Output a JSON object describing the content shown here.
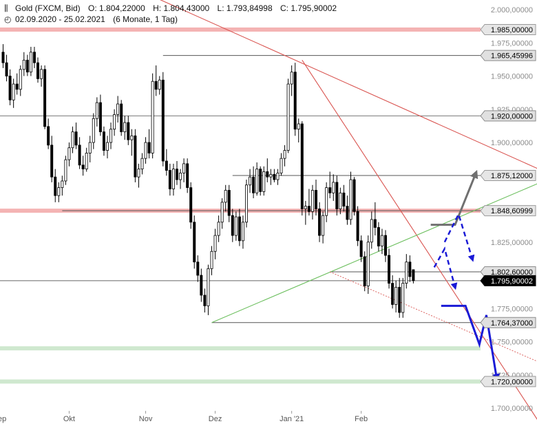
{
  "header": {
    "instrument": "Gold (FXCM, Bid)",
    "ohlc": [
      {
        "label": "O:",
        "value": "1.804,22000"
      },
      {
        "label": "H:",
        "value": "1.804,43000"
      },
      {
        "label": "L:",
        "value": "1.793,84998"
      },
      {
        "label": "C:",
        "value": "1.795,90002"
      }
    ],
    "date_range": "02.09.2020 - 25.02.2021",
    "period": "(6 Monate, 1 Tag)",
    "icons": {
      "chart": "candlestick-icon",
      "clock": "clock-icon"
    }
  },
  "chart_data": {
    "type": "candlestick",
    "ylim": [
      1690,
      2005
    ],
    "y_ticks": [
      {
        "value": 2000,
        "label": "2.000,00000"
      },
      {
        "value": 1975,
        "label": "1.975,00000"
      },
      {
        "value": 1950,
        "label": "1.950,00000"
      },
      {
        "value": 1925,
        "label": "1.925,00000"
      },
      {
        "value": 1900,
        "label": "1.900,00000"
      },
      {
        "value": 1825,
        "label": "1.825,00000"
      },
      {
        "value": 1775,
        "label": "1.775,00000"
      },
      {
        "value": 1750,
        "label": "1.750,00000"
      },
      {
        "value": 1725,
        "label": "1.725,00000"
      },
      {
        "value": 1700,
        "label": "1.700,00000"
      }
    ],
    "x_ticks": [
      {
        "index": -1,
        "label": "Sep"
      },
      {
        "index": 19,
        "label": "Okt"
      },
      {
        "index": 41,
        "label": "Nov"
      },
      {
        "index": 61,
        "label": "Dez"
      },
      {
        "index": 83,
        "label": "Jan '21"
      },
      {
        "index": 103,
        "label": "Feb"
      }
    ],
    "price_labels": [
      {
        "value": 1985.0,
        "label": "1.985,00000",
        "style": "zone-red"
      },
      {
        "value": 1965.45996,
        "label": "1.965,45996",
        "style": "gray"
      },
      {
        "value": 1920.0,
        "label": "1.920,00000",
        "style": "gray"
      },
      {
        "value": 1875.12,
        "label": "1.875,12000",
        "style": "zone-red"
      },
      {
        "value": 1848.60999,
        "label": "1.848,60999",
        "style": "zone-red"
      },
      {
        "value": 1802.6,
        "label": "1.802,60000",
        "style": "gray"
      },
      {
        "value": 1795.90002,
        "label": "1.795,90002",
        "style": "current"
      },
      {
        "value": 1764.37,
        "label": "1.764,37000",
        "style": "gray"
      },
      {
        "value": 1720.0,
        "label": "1.720,00000",
        "style": "zone-green"
      }
    ],
    "zones": [
      {
        "value": 1985.0,
        "color": "#f4b3b3"
      },
      {
        "value": 1848.60999,
        "color": "#f4b3b3"
      },
      {
        "value": 1745.0,
        "color": "#cfe8cf"
      },
      {
        "value": 1720.0,
        "color": "#cfe8cf"
      }
    ],
    "levels": [
      {
        "value": 1965.45996,
        "from": 46,
        "color": "#555555"
      },
      {
        "value": 1920.0,
        "from": -1,
        "color": "#777777"
      },
      {
        "value": 1875.12,
        "from": 66,
        "color": "#555555"
      },
      {
        "value": 1848.60999,
        "from": 17,
        "color": "#555555"
      },
      {
        "value": 1802.6,
        "from": 94,
        "color": "#555555"
      },
      {
        "value": 1795.90002,
        "from": -1,
        "color": "#666666"
      },
      {
        "value": 1764.37,
        "from": 60,
        "color": "#555555"
      }
    ],
    "trendlines": [
      {
        "from": [
          43,
          2010
        ],
        "to": [
          160,
          1873
        ],
        "color": "#d9534f"
      },
      {
        "from": [
          86,
          1962
        ],
        "to": [
          154,
          1690
        ],
        "color": "#d9534f"
      },
      {
        "from": [
          60,
          1764.4
        ],
        "to": [
          160,
          1876
        ],
        "color": "#6cbf5e"
      },
      {
        "from": [
          94,
          1802.6
        ],
        "to": [
          160,
          1728
        ],
        "color": "#d9534f",
        "dash": true
      }
    ],
    "projections": [
      {
        "points": [
          [
            123,
            1838
          ],
          [
            130,
            1838
          ],
          [
            136,
            1877
          ]
        ],
        "color": "#707070",
        "width": 3,
        "dash": false,
        "arrow": true
      },
      {
        "points": [
          [
            124,
            1806
          ],
          [
            127,
            1820
          ],
          [
            130,
            1791
          ]
        ],
        "color": "#1a1ad6",
        "width": 2.5,
        "dash": true,
        "arrow": true
      },
      {
        "points": [
          [
            127,
            1825
          ],
          [
            131,
            1846
          ],
          [
            135,
            1812
          ]
        ],
        "color": "#1a1ad6",
        "width": 2.5,
        "dash": true,
        "arrow": true
      },
      {
        "points": [
          [
            126,
            1777
          ],
          [
            133,
            1777
          ],
          [
            137,
            1748
          ],
          [
            139,
            1770
          ],
          [
            142,
            1722
          ]
        ],
        "color": "#1a1ad6",
        "width": 3,
        "dash": false,
        "arrow": true
      }
    ],
    "candles": [
      [
        1968,
        1974,
        1956,
        1960
      ],
      [
        1960,
        1966,
        1946,
        1950
      ],
      [
        1950,
        1955,
        1928,
        1932
      ],
      [
        1932,
        1948,
        1926,
        1944
      ],
      [
        1944,
        1952,
        1936,
        1940
      ],
      [
        1940,
        1958,
        1935,
        1955
      ],
      [
        1955,
        1968,
        1950,
        1962
      ],
      [
        1962,
        1966,
        1950,
        1953
      ],
      [
        1953,
        1972,
        1950,
        1968
      ],
      [
        1968,
        1972,
        1956,
        1960
      ],
      [
        1960,
        1964,
        1945,
        1948
      ],
      [
        1948,
        1958,
        1942,
        1955
      ],
      [
        1955,
        1958,
        1910,
        1912
      ],
      [
        1912,
        1918,
        1895,
        1898
      ],
      [
        1898,
        1905,
        1870,
        1874
      ],
      [
        1874,
        1880,
        1855,
        1860
      ],
      [
        1860,
        1870,
        1855,
        1866
      ],
      [
        1866,
        1875,
        1860,
        1871
      ],
      [
        1871,
        1890,
        1868,
        1887
      ],
      [
        1887,
        1900,
        1882,
        1896
      ],
      [
        1896,
        1912,
        1892,
        1908
      ],
      [
        1908,
        1915,
        1895,
        1898
      ],
      [
        1898,
        1904,
        1880,
        1883
      ],
      [
        1883,
        1890,
        1875,
        1880
      ],
      [
        1880,
        1896,
        1878,
        1892
      ],
      [
        1892,
        1905,
        1885,
        1900
      ],
      [
        1900,
        1922,
        1895,
        1918
      ],
      [
        1918,
        1934,
        1912,
        1930
      ],
      [
        1930,
        1936,
        1905,
        1908
      ],
      [
        1908,
        1912,
        1890,
        1894
      ],
      [
        1894,
        1905,
        1888,
        1900
      ],
      [
        1900,
        1915,
        1895,
        1910
      ],
      [
        1910,
        1925,
        1905,
        1921
      ],
      [
        1921,
        1935,
        1915,
        1929
      ],
      [
        1929,
        1932,
        1905,
        1908
      ],
      [
        1908,
        1920,
        1902,
        1915
      ],
      [
        1915,
        1920,
        1898,
        1902
      ],
      [
        1902,
        1910,
        1890,
        1905
      ],
      [
        1905,
        1910,
        1870,
        1874
      ],
      [
        1874,
        1884,
        1866,
        1880
      ],
      [
        1880,
        1892,
        1876,
        1888
      ],
      [
        1888,
        1904,
        1884,
        1900
      ],
      [
        1900,
        1910,
        1888,
        1892
      ],
      [
        1892,
        1952,
        1888,
        1946
      ],
      [
        1946,
        1958,
        1935,
        1940
      ],
      [
        1940,
        1950,
        1936,
        1947
      ],
      [
        1947,
        1953,
        1882,
        1886
      ],
      [
        1886,
        1895,
        1875,
        1879
      ],
      [
        1879,
        1884,
        1860,
        1865
      ],
      [
        1865,
        1884,
        1860,
        1880
      ],
      [
        1880,
        1886,
        1868,
        1872
      ],
      [
        1872,
        1880,
        1865,
        1877
      ],
      [
        1877,
        1888,
        1870,
        1884
      ],
      [
        1884,
        1888,
        1862,
        1866
      ],
      [
        1866,
        1870,
        1835,
        1840
      ],
      [
        1840,
        1845,
        1805,
        1810
      ],
      [
        1810,
        1815,
        1795,
        1800
      ],
      [
        1800,
        1805,
        1780,
        1785
      ],
      [
        1785,
        1790,
        1772,
        1777
      ],
      [
        1777,
        1808,
        1770,
        1805
      ],
      [
        1805,
        1822,
        1800,
        1818
      ],
      [
        1818,
        1835,
        1812,
        1830
      ],
      [
        1830,
        1845,
        1825,
        1840
      ],
      [
        1840,
        1858,
        1835,
        1855
      ],
      [
        1855,
        1868,
        1848,
        1864
      ],
      [
        1864,
        1868,
        1840,
        1845
      ],
      [
        1845,
        1850,
        1825,
        1830
      ],
      [
        1830,
        1848,
        1826,
        1844
      ],
      [
        1844,
        1850,
        1822,
        1826
      ],
      [
        1826,
        1845,
        1820,
        1840
      ],
      [
        1840,
        1872,
        1836,
        1868
      ],
      [
        1868,
        1880,
        1862,
        1874
      ],
      [
        1874,
        1882,
        1858,
        1862
      ],
      [
        1862,
        1885,
        1860,
        1880
      ],
      [
        1880,
        1882,
        1860,
        1863
      ],
      [
        1863,
        1882,
        1860,
        1878
      ],
      [
        1878,
        1888,
        1870,
        1874
      ],
      [
        1874,
        1880,
        1868,
        1876
      ],
      [
        1876,
        1880,
        1870,
        1872
      ],
      [
        1872,
        1880,
        1868,
        1877
      ],
      [
        1877,
        1892,
        1875,
        1888
      ],
      [
        1888,
        1898,
        1882,
        1894
      ],
      [
        1894,
        1948,
        1892,
        1944
      ],
      [
        1944,
        1958,
        1935,
        1953
      ],
      [
        1953,
        1960,
        1905,
        1910
      ],
      [
        1910,
        1918,
        1900,
        1914
      ],
      [
        1914,
        1916,
        1845,
        1850
      ],
      [
        1850,
        1856,
        1838,
        1852
      ],
      [
        1852,
        1865,
        1845,
        1848
      ],
      [
        1848,
        1868,
        1842,
        1864
      ],
      [
        1864,
        1872,
        1845,
        1850
      ],
      [
        1850,
        1855,
        1825,
        1830
      ],
      [
        1830,
        1848,
        1824,
        1845
      ],
      [
        1845,
        1870,
        1840,
        1866
      ],
      [
        1866,
        1878,
        1858,
        1862
      ],
      [
        1862,
        1876,
        1856,
        1870
      ],
      [
        1870,
        1875,
        1845,
        1850
      ],
      [
        1850,
        1866,
        1846,
        1862
      ],
      [
        1862,
        1868,
        1848,
        1852
      ],
      [
        1852,
        1860,
        1838,
        1842
      ],
      [
        1842,
        1878,
        1838,
        1872
      ],
      [
        1872,
        1874,
        1845,
        1848
      ],
      [
        1848,
        1852,
        1822,
        1826
      ],
      [
        1826,
        1830,
        1810,
        1814
      ],
      [
        1814,
        1818,
        1788,
        1792
      ],
      [
        1792,
        1830,
        1786,
        1825
      ],
      [
        1825,
        1848,
        1820,
        1842
      ],
      [
        1842,
        1855,
        1830,
        1836
      ],
      [
        1836,
        1840,
        1818,
        1822
      ],
      [
        1822,
        1835,
        1816,
        1830
      ],
      [
        1830,
        1834,
        1810,
        1815
      ],
      [
        1815,
        1820,
        1790,
        1794
      ],
      [
        1794,
        1800,
        1775,
        1778
      ],
      [
        1778,
        1796,
        1772,
        1791
      ],
      [
        1791,
        1798,
        1768,
        1772
      ],
      [
        1772,
        1798,
        1768,
        1794
      ],
      [
        1794,
        1816,
        1790,
        1810
      ],
      [
        1810,
        1815,
        1795,
        1799
      ],
      [
        1804.22,
        1804.43,
        1793.85,
        1795.9
      ]
    ]
  }
}
